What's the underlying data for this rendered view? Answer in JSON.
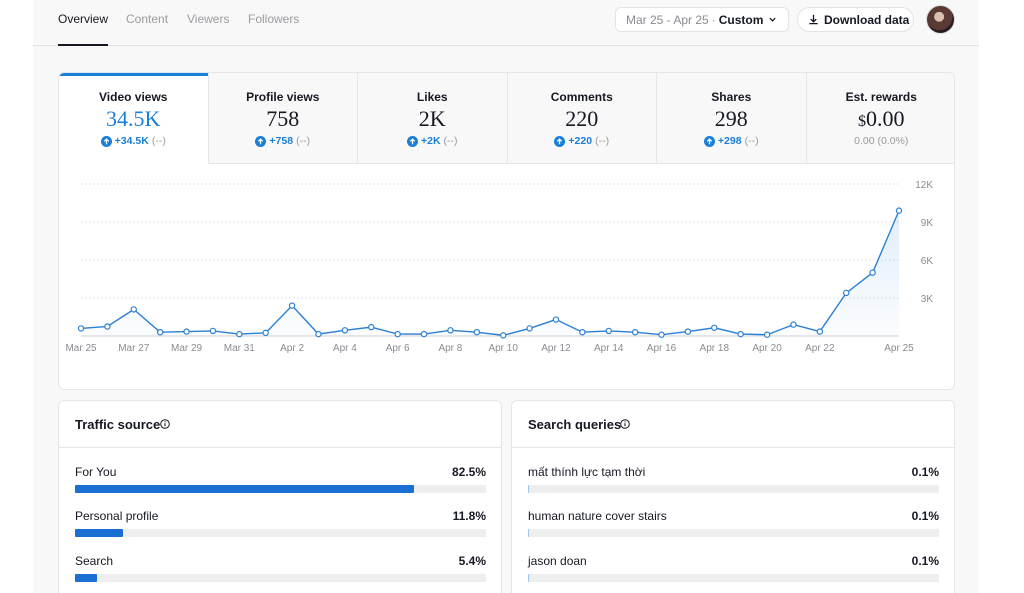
{
  "header": {
    "tabs": [
      {
        "label": "Overview",
        "active": true
      },
      {
        "label": "Content",
        "active": false
      },
      {
        "label": "Viewers",
        "active": false
      },
      {
        "label": "Followers",
        "active": false
      }
    ],
    "date_range": "Mar 25 - Apr 25",
    "date_separator": "·",
    "date_mode": "Custom",
    "download_label": "Download data"
  },
  "metrics": [
    {
      "label": "Video views",
      "value": "34.5K",
      "change": "+34.5K",
      "previous": "(--)",
      "active": true
    },
    {
      "label": "Profile views",
      "value": "758",
      "change": "+758",
      "previous": "(--)"
    },
    {
      "label": "Likes",
      "value": "2K",
      "change": "+2K",
      "previous": "(--)"
    },
    {
      "label": "Comments",
      "value": "220",
      "change": "+220",
      "previous": "(--)"
    },
    {
      "label": "Shares",
      "value": "298",
      "change": "+298",
      "previous": "(--)"
    },
    {
      "label": "Est. rewards",
      "value_symbol": "$",
      "value": "0.00",
      "change_plain": "0.00 (0.0%)"
    }
  ],
  "chart_data": {
    "type": "area",
    "x": [
      "Mar 25",
      "Mar 26",
      "Mar 27",
      "Mar 28",
      "Mar 29",
      "Mar 30",
      "Mar 31",
      "Apr 1",
      "Apr 2",
      "Apr 3",
      "Apr 4",
      "Apr 5",
      "Apr 6",
      "Apr 7",
      "Apr 8",
      "Apr 9",
      "Apr 10",
      "Apr 11",
      "Apr 12",
      "Apr 13",
      "Apr 14",
      "Apr 15",
      "Apr 16",
      "Apr 17",
      "Apr 18",
      "Apr 19",
      "Apr 20",
      "Apr 21",
      "Apr 22",
      "Apr 23",
      "Apr 24",
      "Apr 25"
    ],
    "values": [
      600,
      750,
      2100,
      300,
      350,
      400,
      150,
      250,
      2400,
      150,
      450,
      700,
      150,
      150,
      450,
      300,
      50,
      600,
      1300,
      300,
      400,
      300,
      100,
      350,
      650,
      150,
      100,
      900,
      350,
      3400,
      5000,
      9900
    ],
    "x_ticks": [
      "Mar 25",
      "Mar 27",
      "Mar 29",
      "Mar 31",
      "Apr 2",
      "Apr 4",
      "Apr 6",
      "Apr 8",
      "Apr 10",
      "Apr 12",
      "Apr 14",
      "Apr 16",
      "Apr 18",
      "Apr 20",
      "Apr 22",
      "Apr 25"
    ],
    "y_ticks": [
      "3K",
      "6K",
      "9K",
      "12K"
    ],
    "ylim": [
      0,
      12000
    ],
    "grid": true,
    "color": "#2b7fd4"
  },
  "traffic": {
    "title": "Traffic source",
    "rows": [
      {
        "label": "For You",
        "pct": "82.5%",
        "fraction": 0.825
      },
      {
        "label": "Personal profile",
        "pct": "11.8%",
        "fraction": 0.118
      },
      {
        "label": "Search",
        "pct": "5.4%",
        "fraction": 0.054
      }
    ]
  },
  "queries": {
    "title": "Search queries",
    "rows": [
      {
        "label": "mất thính lực tạm thời",
        "pct": "0.1%",
        "fraction": 0.001
      },
      {
        "label": "human nature cover stairs",
        "pct": "0.1%",
        "fraction": 0.001
      },
      {
        "label": "jason doan",
        "pct": "0.1%",
        "fraction": 0.001
      }
    ]
  },
  "colors": {
    "accent": "#1a7fd8",
    "bar": "#1a6fd2",
    "text": "#161823",
    "muted": "#9b9ba0"
  }
}
